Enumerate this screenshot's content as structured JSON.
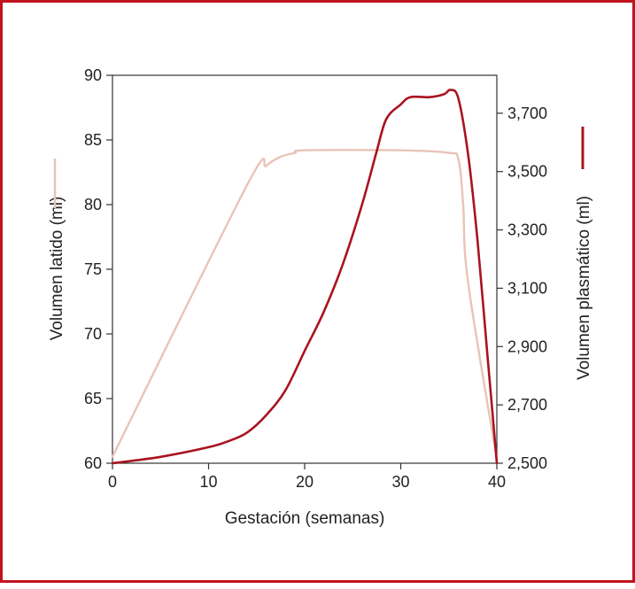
{
  "chart_data": {
    "type": "line",
    "xlabel": "Gestación (semanas)",
    "ylabel_left": "Volumen latido (ml)",
    "ylabel_right": "Volumen plasmático (ml)",
    "xlim": [
      0,
      40
    ],
    "ylim_left": [
      60,
      90
    ],
    "ylim_right": [
      2500,
      3830
    ],
    "x_ticks": [
      {
        "value": 0,
        "label": "0"
      },
      {
        "value": 10,
        "label": "10"
      },
      {
        "value": 20,
        "label": "20"
      },
      {
        "value": 30,
        "label": "30"
      },
      {
        "value": 40,
        "label": "40"
      }
    ],
    "y_left_ticks": [
      {
        "value": 60,
        "label": "60"
      },
      {
        "value": 65,
        "label": "65"
      },
      {
        "value": 70,
        "label": "70"
      },
      {
        "value": 75,
        "label": "75"
      },
      {
        "value": 80,
        "label": "80"
      },
      {
        "value": 85,
        "label": "85"
      },
      {
        "value": 90,
        "label": "90"
      }
    ],
    "y_right_ticks": [
      {
        "value": 2500,
        "label": "2,500"
      },
      {
        "value": 2700,
        "label": "2,700"
      },
      {
        "value": 2900,
        "label": "2,900"
      },
      {
        "value": 3100,
        "label": "3,100"
      },
      {
        "value": 3300,
        "label": "3,300"
      },
      {
        "value": 3500,
        "label": "3,500"
      },
      {
        "value": 3700,
        "label": "3,700"
      }
    ],
    "series": [
      {
        "axis": "left",
        "color": "#e8c4b6",
        "x": [
          0,
          14,
          16,
          17.5,
          19,
          20,
          30,
          35,
          36,
          36.5,
          37,
          40
        ],
        "y": [
          60.5,
          81.5,
          83.0,
          83.7,
          84.0,
          84.2,
          84.2,
          84.0,
          83.5,
          80,
          74,
          60.3
        ]
      },
      {
        "axis": "right",
        "color": "#a81420",
        "x": [
          0,
          5,
          10,
          12,
          14,
          16,
          18,
          20,
          22,
          24,
          26,
          27.5,
          28.5,
          30,
          31,
          33,
          34.5,
          35.2,
          36,
          37,
          38,
          39,
          40
        ],
        "y": [
          2500,
          2522,
          2555,
          2575,
          2605,
          2665,
          2750,
          2885,
          3020,
          3185,
          3390,
          3570,
          3680,
          3730,
          3755,
          3755,
          3765,
          3780,
          3750,
          3560,
          3260,
          2880,
          2500
        ]
      }
    ]
  }
}
